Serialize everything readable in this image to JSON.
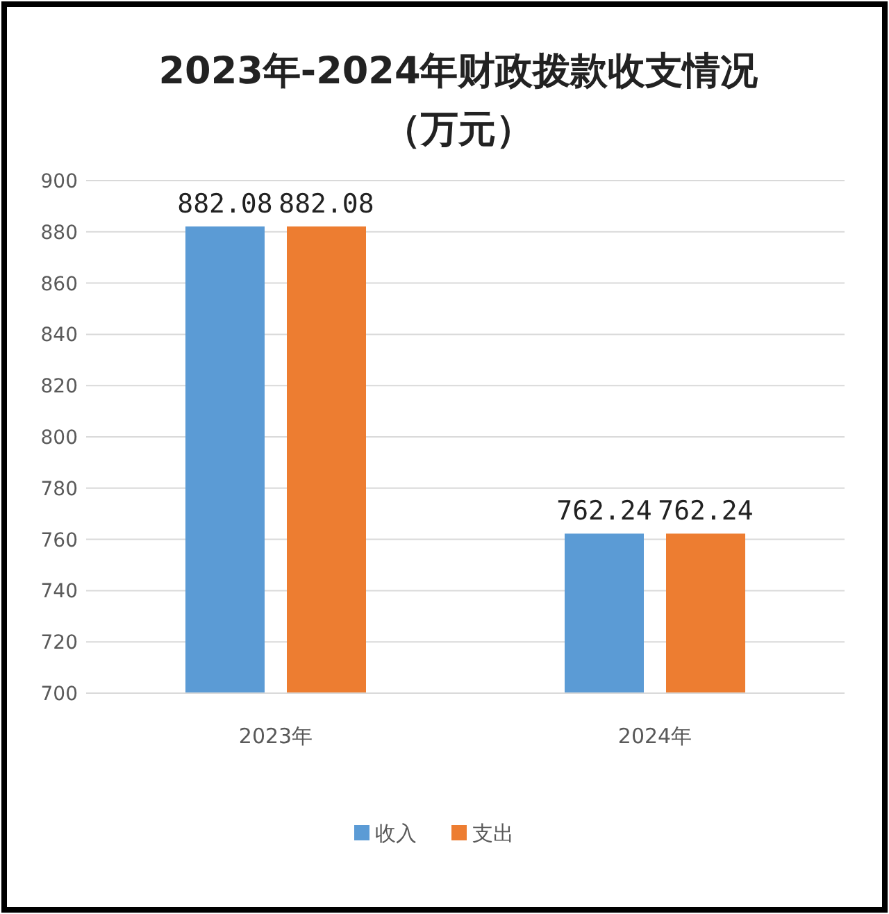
{
  "chart_data": {
    "type": "bar",
    "title": "2023年-2024年财政拨款收支情况",
    "subtitle": "（万元）",
    "categories": [
      "2023年",
      "2024年"
    ],
    "series": [
      {
        "name": "收入",
        "color": "#5b9bd5",
        "values": [
          882.08,
          762.24
        ]
      },
      {
        "name": "支出",
        "color": "#ed7d31",
        "values": [
          882.08,
          762.24
        ]
      }
    ],
    "ylim": [
      700,
      900
    ],
    "yticks": [
      700,
      720,
      740,
      760,
      780,
      800,
      820,
      840,
      860,
      880,
      900
    ],
    "grid": "y",
    "legend": "bottom",
    "data_labels": true
  }
}
